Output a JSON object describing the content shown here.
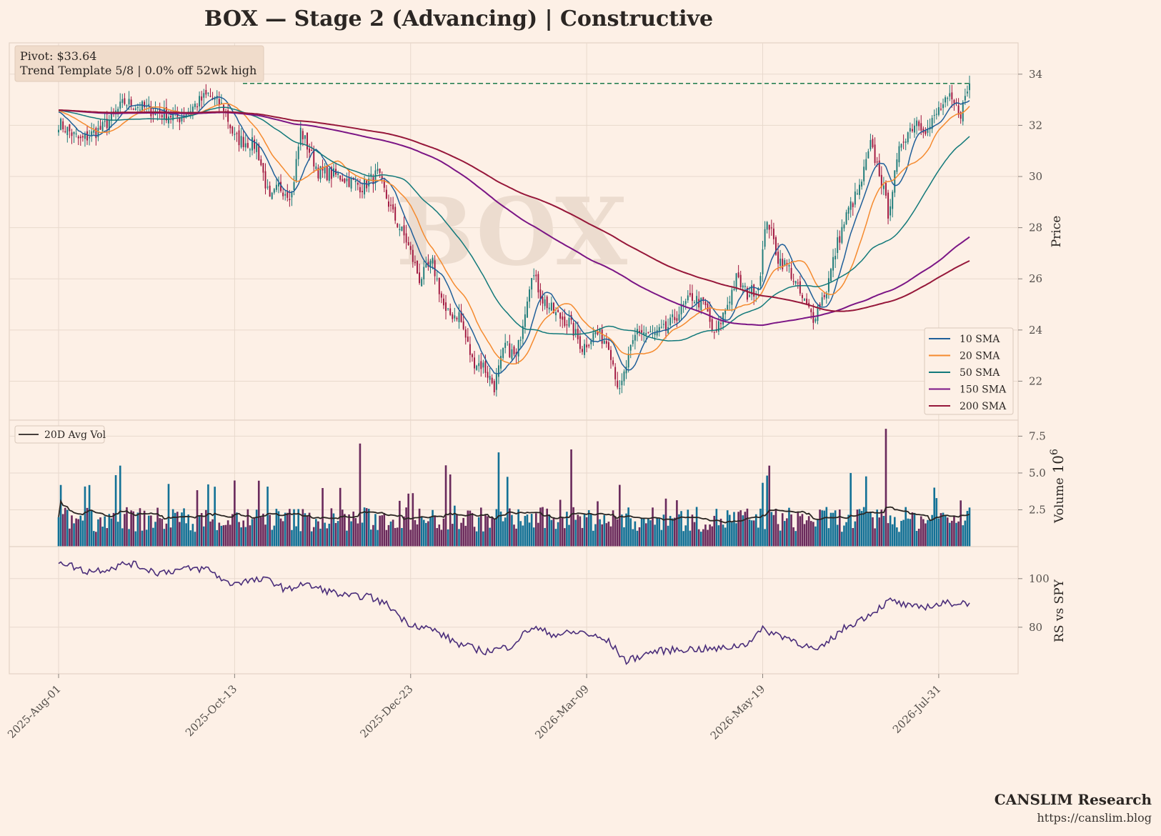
{
  "title": "BOX  —  Stage 2 (Advancing)  |  Constructive",
  "watermark": "BOX",
  "info_box": {
    "line1": "Pivot: $33.64",
    "line2": "Trend Template 5/8  |  0.0% off 52wk high"
  },
  "footer": {
    "brand": "CANSLIM Research",
    "url": "https://canslim.blog"
  },
  "colors": {
    "background": "#fdf0e6",
    "up_candle": "#1b7a78",
    "down_candle": "#a0153e",
    "sma10": "#1f5f99",
    "sma20": "#f58a2e",
    "sma50": "#12797a",
    "sma150": "#7b1585",
    "sma200": "#96173a",
    "pivot_line": "#1a7a4a",
    "vol_up": "#137196",
    "vol_down": "#6a2a5c",
    "avg_vol": "#2b2623",
    "rs_line": "#4a2d7a"
  },
  "chart_data": [
    {
      "panel": "price",
      "type": "candlestick",
      "ylabel": "Price",
      "ylim": [
        20.7,
        35.0
      ],
      "yticks": [
        "22",
        "24",
        "26",
        "28",
        "30",
        "32",
        "34"
      ],
      "ytick_values": [
        22,
        24,
        26,
        28,
        30,
        32,
        34
      ],
      "pivot": 33.64,
      "price_path": [
        {
          "d": 0,
          "p": 32.1
        },
        {
          "d": 10,
          "p": 31.4
        },
        {
          "d": 20,
          "p": 31.9
        },
        {
          "d": 30,
          "p": 32.9
        },
        {
          "d": 42,
          "p": 32.6
        },
        {
          "d": 55,
          "p": 32.3
        },
        {
          "d": 68,
          "p": 33.2
        },
        {
          "d": 75,
          "p": 32.7
        },
        {
          "d": 80,
          "p": 31.5
        },
        {
          "d": 90,
          "p": 31.2
        },
        {
          "d": 96,
          "p": 29.0
        },
        {
          "d": 100,
          "p": 29.6
        },
        {
          "d": 106,
          "p": 29.3
        },
        {
          "d": 110,
          "p": 31.8
        },
        {
          "d": 118,
          "p": 30.2
        },
        {
          "d": 128,
          "p": 30.0
        },
        {
          "d": 138,
          "p": 29.6
        },
        {
          "d": 145,
          "p": 30.1
        },
        {
          "d": 152,
          "p": 28.5
        },
        {
          "d": 158,
          "p": 27.5
        },
        {
          "d": 164,
          "p": 26.0
        },
        {
          "d": 170,
          "p": 26.6
        },
        {
          "d": 176,
          "p": 24.6
        },
        {
          "d": 182,
          "p": 24.6
        },
        {
          "d": 188,
          "p": 22.8
        },
        {
          "d": 193,
          "p": 22.6
        },
        {
          "d": 198,
          "p": 21.8
        },
        {
          "d": 203,
          "p": 23.4
        },
        {
          "d": 208,
          "p": 22.9
        },
        {
          "d": 215,
          "p": 26.3
        },
        {
          "d": 220,
          "p": 25.2
        },
        {
          "d": 226,
          "p": 24.6
        },
        {
          "d": 232,
          "p": 24.3
        },
        {
          "d": 238,
          "p": 23.3
        },
        {
          "d": 244,
          "p": 23.9
        },
        {
          "d": 250,
          "p": 23.5
        },
        {
          "d": 255,
          "p": 21.5
        },
        {
          "d": 258,
          "p": 22.6
        },
        {
          "d": 263,
          "p": 24.0
        },
        {
          "d": 270,
          "p": 23.8
        },
        {
          "d": 276,
          "p": 24.0
        },
        {
          "d": 282,
          "p": 24.7
        },
        {
          "d": 288,
          "p": 25.3
        },
        {
          "d": 294,
          "p": 24.9
        },
        {
          "d": 298,
          "p": 23.7
        },
        {
          "d": 303,
          "p": 24.8
        },
        {
          "d": 308,
          "p": 26.0
        },
        {
          "d": 313,
          "p": 25.4
        },
        {
          "d": 318,
          "p": 25.7
        },
        {
          "d": 322,
          "p": 28.4
        },
        {
          "d": 327,
          "p": 26.8
        },
        {
          "d": 332,
          "p": 26.4
        },
        {
          "d": 338,
          "p": 25.2
        },
        {
          "d": 343,
          "p": 24.5
        },
        {
          "d": 349,
          "p": 25.6
        },
        {
          "d": 354,
          "p": 27.4
        },
        {
          "d": 359,
          "p": 28.7
        },
        {
          "d": 364,
          "p": 29.5
        },
        {
          "d": 369,
          "p": 31.2
        },
        {
          "d": 373,
          "p": 30.2
        },
        {
          "d": 377,
          "p": 28.6
        },
        {
          "d": 383,
          "p": 31.4
        },
        {
          "d": 390,
          "p": 32.2
        },
        {
          "d": 395,
          "p": 31.8
        },
        {
          "d": 400,
          "p": 32.6
        },
        {
          "d": 405,
          "p": 33.0
        },
        {
          "d": 410,
          "p": 32.5
        },
        {
          "d": 414,
          "p": 33.64
        }
      ],
      "sma_lines": [
        {
          "name": "10 SMA",
          "window": 10
        },
        {
          "name": "20 SMA",
          "window": 20
        },
        {
          "name": "50 SMA",
          "window": 50
        },
        {
          "name": "150 SMA",
          "window": 150
        },
        {
          "name": "200 SMA",
          "window": 200
        }
      ],
      "legend": [
        "10 SMA",
        "20 SMA",
        "50 SMA",
        "150 SMA",
        "200 SMA"
      ],
      "legend_position": "lower-right"
    },
    {
      "panel": "volume",
      "type": "bar",
      "ylabel": "Volume",
      "multiplier_label": "10",
      "multiplier_exponent": "6",
      "yticks": [
        "2.5",
        "5.0",
        "7.5"
      ],
      "ytick_values": [
        2.5,
        5.0,
        7.5
      ],
      "ylim": [
        0,
        8.2
      ],
      "avg_line_label": "20D Avg Vol",
      "legend_position": "upper-left",
      "spikes": [
        {
          "d": 28,
          "v": 5.5
        },
        {
          "d": 137,
          "v": 7.0
        },
        {
          "d": 200,
          "v": 6.4
        },
        {
          "d": 233,
          "v": 6.6
        },
        {
          "d": 323,
          "v": 5.5
        },
        {
          "d": 376,
          "v": 8.0
        },
        {
          "d": 178,
          "v": 4.9
        },
        {
          "d": 360,
          "v": 5.0
        }
      ]
    },
    {
      "panel": "rs",
      "type": "line",
      "ylabel": "RS vs SPY",
      "yticks": [
        "80",
        "100"
      ],
      "ytick_values": [
        80,
        100
      ],
      "ylim": [
        62,
        112
      ],
      "rs_path": [
        {
          "d": 0,
          "v": 107.5
        },
        {
          "d": 12,
          "v": 103
        },
        {
          "d": 22,
          "v": 104
        },
        {
          "d": 32,
          "v": 106.5
        },
        {
          "d": 45,
          "v": 102.5
        },
        {
          "d": 58,
          "v": 104
        },
        {
          "d": 68,
          "v": 104
        },
        {
          "d": 77,
          "v": 98
        },
        {
          "d": 85,
          "v": 99
        },
        {
          "d": 96,
          "v": 99.5
        },
        {
          "d": 104,
          "v": 95
        },
        {
          "d": 110,
          "v": 98
        },
        {
          "d": 122,
          "v": 95
        },
        {
          "d": 132,
          "v": 92.5
        },
        {
          "d": 140,
          "v": 93
        },
        {
          "d": 150,
          "v": 89
        },
        {
          "d": 158,
          "v": 82
        },
        {
          "d": 170,
          "v": 79
        },
        {
          "d": 182,
          "v": 73
        },
        {
          "d": 194,
          "v": 70
        },
        {
          "d": 205,
          "v": 72
        },
        {
          "d": 215,
          "v": 80
        },
        {
          "d": 225,
          "v": 77
        },
        {
          "d": 238,
          "v": 78
        },
        {
          "d": 250,
          "v": 74
        },
        {
          "d": 258,
          "v": 66
        },
        {
          "d": 270,
          "v": 70
        },
        {
          "d": 285,
          "v": 71
        },
        {
          "d": 300,
          "v": 71
        },
        {
          "d": 312,
          "v": 73
        },
        {
          "d": 320,
          "v": 79
        },
        {
          "d": 332,
          "v": 75.5
        },
        {
          "d": 345,
          "v": 70
        },
        {
          "d": 356,
          "v": 79
        },
        {
          "d": 368,
          "v": 85
        },
        {
          "d": 378,
          "v": 91
        },
        {
          "d": 388,
          "v": 88
        },
        {
          "d": 398,
          "v": 89
        },
        {
          "d": 405,
          "v": 90
        },
        {
          "d": 414,
          "v": 90
        }
      ]
    }
  ],
  "x_axis": {
    "days": 414,
    "ticks": [
      {
        "d": 0,
        "label": "2025-Aug-01"
      },
      {
        "d": 80,
        "label": "2025-Oct-13"
      },
      {
        "d": 160,
        "label": "2025-Dec-23"
      },
      {
        "d": 240,
        "label": "2026-Mar-09"
      },
      {
        "d": 320,
        "label": "2026-May-19"
      },
      {
        "d": 400,
        "label": "2026-Jul-31"
      }
    ]
  }
}
